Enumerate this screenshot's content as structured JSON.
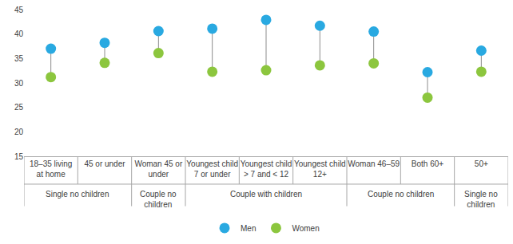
{
  "chart_data": {
    "type": "dumbbell",
    "categories": [
      "18–35 living at home",
      "45 or under",
      "Woman 45 or under",
      "Youngest child 7 or under",
      "Youngest child > 7 and < 12",
      "Youngest child 12+",
      "Woman 46–59",
      "Both 60+",
      "50+"
    ],
    "category_groups": [
      "Single no children",
      "Single no children",
      "Couple no children",
      "Couple with children",
      "Couple with children",
      "Couple with children",
      "Couple no children",
      "Couple no children",
      "Single no children"
    ],
    "series": [
      {
        "name": "Men",
        "color": "#29a9e1",
        "values": [
          37.0,
          38.2,
          40.6,
          41.1,
          42.9,
          41.7,
          40.5,
          32.2,
          36.6
        ]
      },
      {
        "name": "Women",
        "color": "#8cc63e",
        "values": [
          31.2,
          34.1,
          36.1,
          32.3,
          32.6,
          33.6,
          34.0,
          27.0,
          32.3
        ]
      }
    ],
    "ylim": [
      15,
      45
    ],
    "yticks": [
      15,
      20,
      25,
      30,
      35,
      40,
      45
    ],
    "grid": false,
    "legend": "bottom"
  }
}
